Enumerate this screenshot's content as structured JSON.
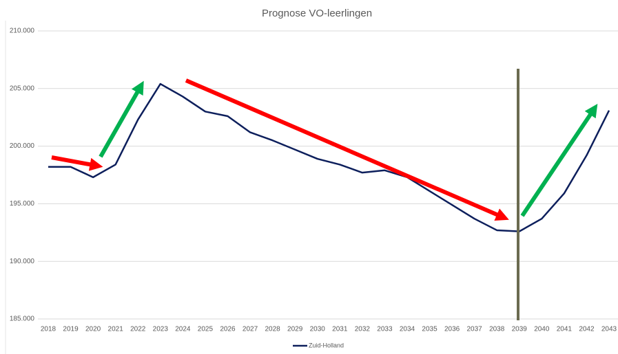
{
  "chart_data": {
    "type": "line",
    "title": "Prognose VO-leerlingen",
    "categories": [
      "2018",
      "2019",
      "2020",
      "2021",
      "2022",
      "2023",
      "2024",
      "2025",
      "2026",
      "2027",
      "2028",
      "2029",
      "2030",
      "2031",
      "2032",
      "2033",
      "2034",
      "2035",
      "2036",
      "2037",
      "2038",
      "2039",
      "2040",
      "2041",
      "2042",
      "2043"
    ],
    "series": [
      {
        "name": "Zuid-Holland",
        "color": "#0d1f5c",
        "values": [
          198200,
          198200,
          197300,
          198400,
          202300,
          205400,
          204300,
          203000,
          202600,
          201200,
          200500,
          199700,
          198900,
          198400,
          197700,
          197900,
          197300,
          196100,
          194900,
          193700,
          192700,
          192600,
          193700,
          195900,
          199200,
          203100
        ]
      }
    ],
    "ylim": [
      185000,
      210000
    ],
    "yticks": [
      {
        "value": 185000,
        "label": "185.000"
      },
      {
        "value": 190000,
        "label": "190.000"
      },
      {
        "value": 195000,
        "label": "195.000"
      },
      {
        "value": 200000,
        "label": "200.000"
      },
      {
        "value": 205000,
        "label": "205.000"
      },
      {
        "value": 210000,
        "label": "210.000"
      }
    ],
    "grid": true,
    "legend": "bottom"
  }
}
